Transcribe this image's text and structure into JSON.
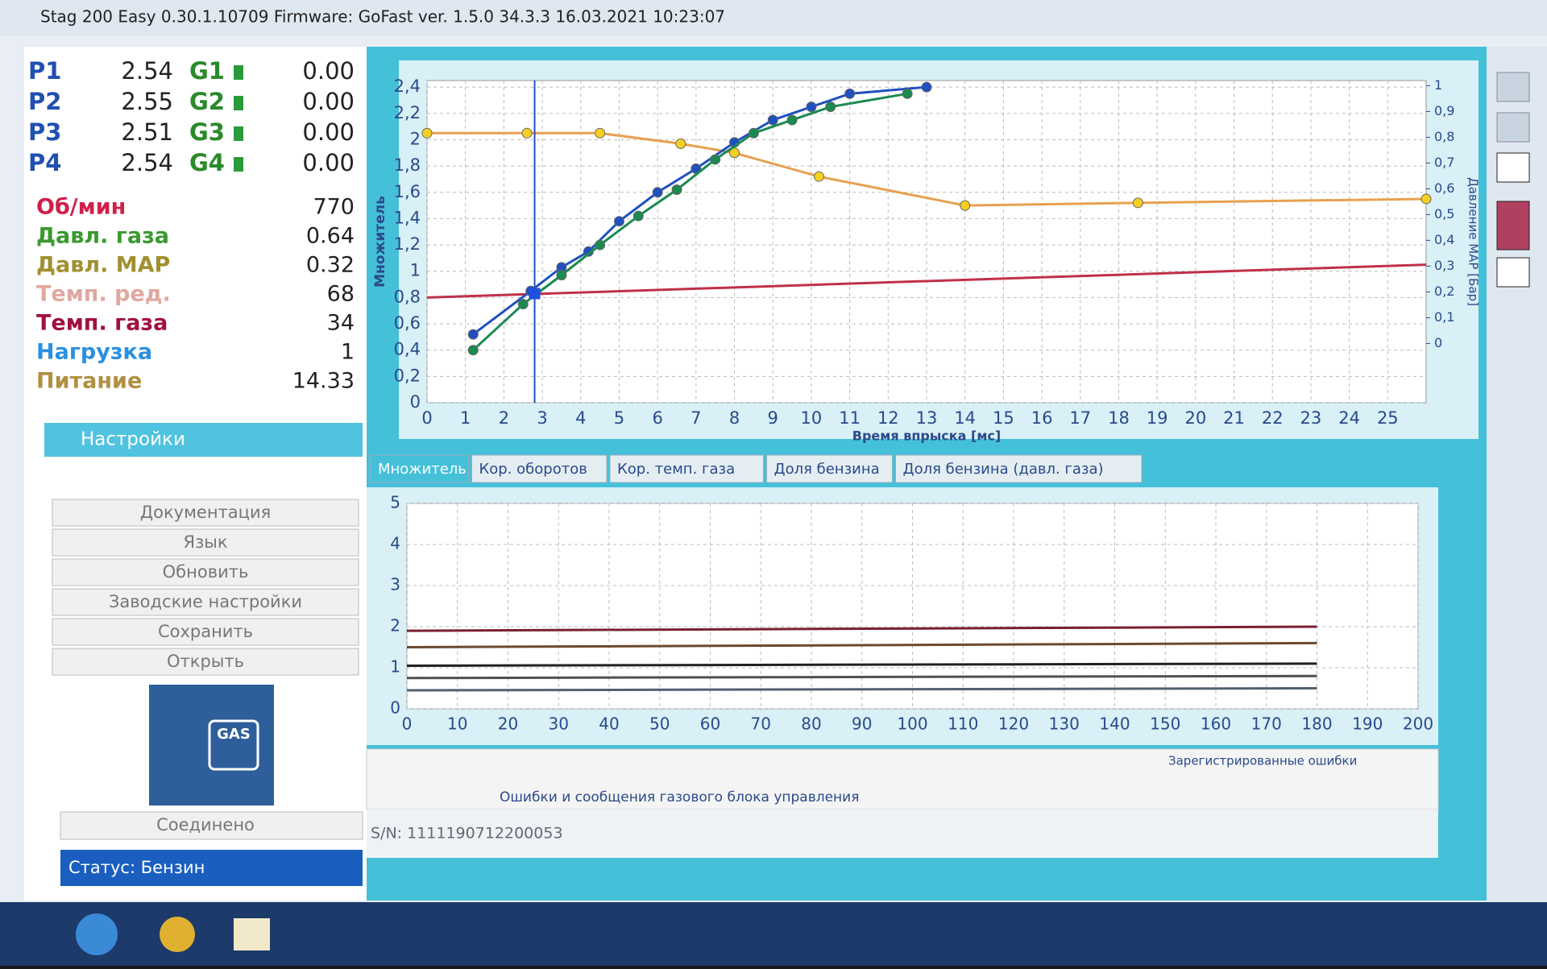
{
  "window": {
    "title": "Stag 200 Easy 0.30.1.10709 Firmware: GoFast  ver. 1.5.0  34.3.3   16.03.2021 10:23:07"
  },
  "readings": [
    {
      "p": "P1",
      "p_value": "2.54",
      "g": "G1",
      "g_value": "0.00"
    },
    {
      "p": "P2",
      "p_value": "2.55",
      "g": "G2",
      "g_value": "0.00"
    },
    {
      "p": "P3",
      "p_value": "2.51",
      "g": "G3",
      "g_value": "0.00"
    },
    {
      "p": "P4",
      "p_value": "2.54",
      "g": "G4",
      "g_value": "0.00"
    }
  ],
  "parameters": [
    {
      "label": "Об/мин",
      "value": "770",
      "color": "#d0204a"
    },
    {
      "label": "Давл. газа",
      "value": "0.64",
      "color": "#3a9a30"
    },
    {
      "label": "Давл. MAP",
      "value": "0.32",
      "color": "#a09030"
    },
    {
      "label": "Темп. ред.",
      "value": "68",
      "color": "#e0a8a0"
    },
    {
      "label": "Темп. газа",
      "value": "34",
      "color": "#a01040"
    },
    {
      "label": "Нагрузка",
      "value": "1",
      "color": "#2a90e0"
    },
    {
      "label": "Питание",
      "value": "14.33",
      "color": "#b09040"
    }
  ],
  "settings": {
    "title": "Настройки",
    "buttons": [
      "Документация",
      "Язык",
      "Обновить",
      "Заводские настройки",
      "Сохранить",
      "Открыть"
    ]
  },
  "gas_icon": "GAS",
  "connection": "Соединено",
  "status": "Статус: Бензин",
  "tabs": [
    "Множитель",
    "Кор. оборотов",
    "Кор. темп. газа",
    "Доля бензина",
    "Доля бензина (давл. газа)"
  ],
  "chart_data": [
    {
      "type": "line",
      "y_label": "Множитель",
      "x_label": "Время впрыска [мс]",
      "y2_label": "Давление MAP [Бар]",
      "xlim": [
        0,
        26
      ],
      "xticks": [
        0,
        1,
        2,
        3,
        4,
        5,
        6,
        7,
        8,
        9,
        10,
        11,
        12,
        13,
        14,
        15,
        16,
        17,
        18,
        19,
        20,
        21,
        22,
        23,
        24,
        25
      ],
      "ylim": [
        0,
        2.45
      ],
      "yticks": [
        0,
        {
          "value": 0.2,
          "label": "0,2"
        },
        {
          "value": 0.4,
          "label": "0,4"
        },
        {
          "value": 0.6,
          "label": "0,6"
        },
        {
          "value": 0.8,
          "label": "0,8"
        },
        1,
        {
          "value": 1.2,
          "label": "1,2"
        },
        {
          "value": 1.4,
          "label": "1,4"
        },
        {
          "value": 1.6,
          "label": "1,6"
        },
        {
          "value": 1.8,
          "label": "1,8"
        },
        2,
        {
          "value": 2.2,
          "label": "2,2"
        },
        {
          "value": 2.4,
          "label": "2,4"
        }
      ],
      "y2lim": [
        -0.23,
        1.02
      ],
      "y2ticks": [
        0,
        {
          "value": 0.1,
          "label": "0,1"
        },
        {
          "value": 0.2,
          "label": "0,2"
        },
        {
          "value": 0.3,
          "label": "0,3"
        },
        {
          "value": 0.4,
          "label": "0,4"
        },
        {
          "value": 0.5,
          "label": "0,5"
        },
        {
          "value": 0.6,
          "label": "0,6"
        },
        {
          "value": 0.7,
          "label": "0,7"
        },
        {
          "value": 0.8,
          "label": "0,8"
        },
        {
          "value": 0.9,
          "label": "0,9"
        },
        1
      ],
      "grid": true,
      "cursor": {
        "x": 2.8,
        "y": 0.83
      },
      "series": [
        {
          "color": "#e8a050",
          "marker_color": "#f5d020",
          "x": [
            0,
            2.6,
            4.5,
            6.6,
            8,
            10.2,
            14,
            18.5,
            26
          ],
          "values": [
            2.05,
            2.05,
            2.05,
            1.97,
            1.9,
            1.72,
            1.5,
            1.52,
            1.55
          ]
        },
        {
          "color": "#c0304a",
          "x": [
            0,
            26
          ],
          "values": [
            0.8,
            1.05
          ]
        },
        {
          "color": "#2050c0",
          "marker_color": "#2050c0",
          "x": [
            1.2,
            2.7,
            3.5,
            4.2,
            5,
            6,
            7,
            8,
            9,
            10,
            11,
            13
          ],
          "values": [
            0.52,
            0.85,
            1.03,
            1.15,
            1.38,
            1.6,
            1.78,
            1.98,
            2.15,
            2.25,
            2.35,
            2.4
          ]
        },
        {
          "color": "#1a8a50",
          "marker_color": "#1a8a50",
          "x": [
            1.2,
            2.5,
            3.5,
            4.5,
            5.5,
            6.5,
            7.5,
            8.5,
            9.5,
            10.5,
            12.5
          ],
          "values": [
            0.4,
            0.75,
            0.97,
            1.2,
            1.42,
            1.62,
            1.85,
            2.05,
            2.15,
            2.25,
            2.35
          ]
        }
      ]
    },
    {
      "type": "line",
      "xlim": [
        0,
        200
      ],
      "xticks": [
        0,
        10,
        20,
        30,
        40,
        50,
        60,
        70,
        80,
        90,
        100,
        110,
        120,
        130,
        140,
        150,
        160,
        170,
        180,
        190,
        200
      ],
      "ylim": [
        0,
        5
      ],
      "yticks": [
        0,
        1,
        2,
        3,
        4,
        5
      ],
      "grid": true,
      "series": [
        {
          "color": "#7a2030",
          "x": [
            0,
            180
          ],
          "values": [
            1.9,
            2.0
          ]
        },
        {
          "color": "#6a4a30",
          "x": [
            0,
            180
          ],
          "values": [
            1.5,
            1.6
          ]
        },
        {
          "color": "#202020",
          "x": [
            0,
            180
          ],
          "values": [
            1.05,
            1.1
          ]
        },
        {
          "color": "#505050",
          "x": [
            0,
            180
          ],
          "values": [
            0.75,
            0.8
          ]
        },
        {
          "color": "#506070",
          "x": [
            0,
            180
          ],
          "values": [
            0.45,
            0.5
          ]
        }
      ]
    }
  ],
  "errors": {
    "registered": "Зарегистрированные ошибки",
    "messages": "Ошибки и сообщения газового блока управления"
  },
  "serial": "S/N: 1111190712200053"
}
